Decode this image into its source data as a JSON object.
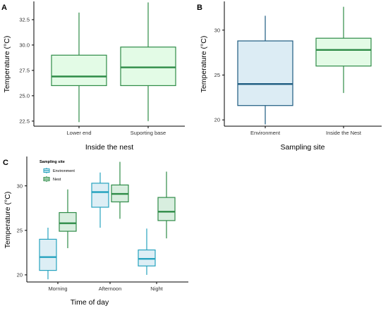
{
  "chart_data": [
    {
      "panel": "A",
      "type": "box",
      "xlabel": "Inside the nest",
      "ylabel": "Temperature (°C)",
      "ylim": [
        22.0,
        34.3
      ],
      "yticks": [
        "22.5",
        "25.0",
        "27.5",
        "30.0",
        "32.5"
      ],
      "yticks_values": [
        22.5,
        25.0,
        27.5,
        30.0,
        32.5
      ],
      "categories": [
        "Lower end",
        "Suporting base"
      ],
      "boxes": [
        {
          "category": "Lower end",
          "min": 22.4,
          "q1": 26.0,
          "median": 26.9,
          "q3": 29.0,
          "max": 33.2
        },
        {
          "category": "Suporting base",
          "min": 22.5,
          "q1": 26.0,
          "median": 27.8,
          "q3": 29.8,
          "max": 34.2
        }
      ],
      "colors": {
        "line": "#2e8b47",
        "fill": "#e3fbe6"
      }
    },
    {
      "panel": "B",
      "type": "box",
      "xlabel": "Sampling site",
      "ylabel": "Temperature (°C)",
      "ylim": [
        19.3,
        33.2
      ],
      "yticks": [
        "20",
        "25",
        "30"
      ],
      "yticks_values": [
        20,
        25,
        30
      ],
      "categories": [
        "Environment",
        "Inside the Nest"
      ],
      "boxes": [
        {
          "category": "Environment",
          "min": 19.5,
          "q1": 21.6,
          "median": 24.0,
          "q3": 28.8,
          "max": 31.6,
          "line": "#1d5b80",
          "fill": "#dcecf4"
        },
        {
          "category": "Inside the Nest",
          "min": 23.0,
          "q1": 26.0,
          "median": 27.8,
          "q3": 29.1,
          "max": 32.6,
          "line": "#2e8b47",
          "fill": "#e3fbe6"
        }
      ]
    },
    {
      "panel": "C",
      "type": "box",
      "xlabel": "Time of day",
      "ylabel": "Temperature (°C)",
      "ylim": [
        19.2,
        33.3
      ],
      "yticks": [
        "20",
        "25",
        "30"
      ],
      "yticks_values": [
        20,
        25,
        30
      ],
      "categories": [
        "Morning",
        "Afternoon",
        "Night"
      ],
      "legend": {
        "title": "Sampling site",
        "entries": [
          "Environment",
          "Nest"
        ]
      },
      "series": [
        {
          "name": "Environment",
          "line": "#27a3bf",
          "fill": "#ddeef5",
          "boxes": [
            {
              "category": "Morning",
              "min": 19.5,
              "q1": 20.5,
              "median": 22.0,
              "q3": 24.0,
              "max": 25.3
            },
            {
              "category": "Afternoon",
              "min": 25.3,
              "q1": 27.6,
              "median": 29.3,
              "q3": 30.3,
              "max": 31.5
            },
            {
              "category": "Night",
              "min": 20.0,
              "q1": 21.0,
              "median": 21.8,
              "q3": 22.8,
              "max": 25.2
            }
          ]
        },
        {
          "name": "Nest",
          "line": "#2e8b47",
          "fill": "#d8eedf",
          "boxes": [
            {
              "category": "Morning",
              "min": 23.0,
              "q1": 24.9,
              "median": 25.8,
              "q3": 27.0,
              "max": 29.6
            },
            {
              "category": "Afternoon",
              "min": 26.3,
              "q1": 28.2,
              "median": 29.1,
              "q3": 30.1,
              "max": 32.7
            },
            {
              "category": "Night",
              "min": 24.1,
              "q1": 26.1,
              "median": 27.1,
              "q3": 28.7,
              "max": 31.6
            }
          ]
        }
      ]
    }
  ]
}
